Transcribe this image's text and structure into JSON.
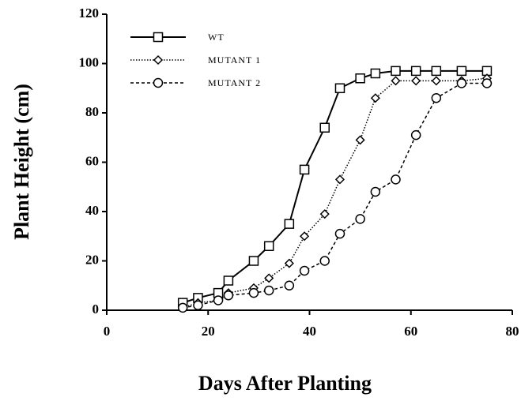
{
  "chart_data": {
    "type": "line",
    "x_label": "Days After Planting",
    "y_label": "Plant Height (cm)",
    "xlim": [
      0,
      80
    ],
    "xticks": [
      0,
      20,
      40,
      60,
      80
    ],
    "ylim": [
      0,
      120
    ],
    "yticks": [
      0,
      20,
      40,
      60,
      80,
      100,
      120
    ],
    "legend": "top-left",
    "series": [
      {
        "name": "WT",
        "color": "#000000",
        "dash": "solid",
        "marker": "square",
        "x": [
          15,
          18,
          22,
          24,
          29,
          32,
          36,
          39,
          43,
          46,
          50,
          53,
          57,
          61,
          65,
          70,
          75
        ],
        "values": [
          3,
          5,
          7,
          12,
          20,
          26,
          35,
          57,
          74,
          90,
          94,
          96,
          97,
          97,
          97,
          97,
          97
        ]
      },
      {
        "name": "MUTANT 1",
        "color": "#000000",
        "dash": "dotted",
        "marker": "diamond",
        "x": [
          15,
          18,
          22,
          24,
          29,
          32,
          36,
          39,
          43,
          46,
          50,
          53,
          57,
          61,
          65,
          70,
          75
        ],
        "values": [
          1,
          3,
          4,
          7,
          9,
          13,
          19,
          30,
          39,
          53,
          69,
          86,
          93,
          93,
          93,
          93,
          94
        ]
      },
      {
        "name": "MUTANT 2",
        "color": "#000000",
        "dash": "dashed",
        "marker": "circle",
        "x": [
          15,
          18,
          22,
          24,
          29,
          32,
          36,
          39,
          43,
          46,
          50,
          53,
          57,
          61,
          65,
          70,
          75
        ],
        "values": [
          1,
          2,
          4,
          6,
          7,
          8,
          10,
          16,
          20,
          31,
          37,
          48,
          53,
          71,
          86,
          92,
          92
        ]
      }
    ]
  }
}
